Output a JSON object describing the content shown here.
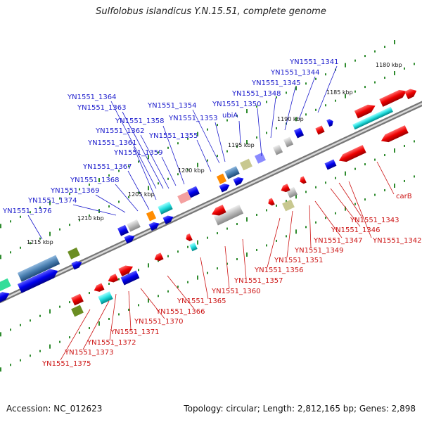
{
  "title": "Sulfolobus islandicus Y.N.15.51, complete genome",
  "footer": {
    "accession": "Accession: NC_012623",
    "summary": "Topology: circular; Length: 2,812,165 bp; Genes: 2,898"
  },
  "colors": {
    "label_top": "#1a1acc",
    "label_bottom": "#cc1111",
    "backbone": "#888888",
    "tick": "#2e8b2e"
  },
  "kbp_ticks": [
    "1180 kbp",
    "1185 kbp",
    "1190 kbp",
    "1195 kbp",
    "1200 kbp",
    "1205 kbp",
    "1210 kbp",
    "1215 kbp"
  ],
  "top_labels": [
    "YN1551_1341",
    "YN1551_1344",
    "YN1551_1345",
    "YN1551_1348",
    "YN1551_1350",
    "ubiA",
    "YN1551_1354",
    "YN1551_1353",
    "YN1551_1364",
    "YN1551_1363",
    "YN1551_1358",
    "YN1551_1362",
    "YN1551_1355",
    "YN1551_1361",
    "YN1551_1359",
    "YN1551_1367",
    "YN1551_1368",
    "YN1551_1369",
    "YN1551_1374",
    "YN1551_1376"
  ],
  "bottom_labels": [
    "carB",
    "YN1551_1343",
    "YN1551_1346",
    "YN1551_1342",
    "YN1551_1347",
    "YN1551_1349",
    "YN1551_1351",
    "YN1551_1356",
    "YN1551_1357",
    "YN1551_1360",
    "YN1551_1365",
    "YN1551_1366",
    "YN1551_1370",
    "YN1551_1371",
    "YN1551_1372",
    "YN1551_1373",
    "YN1551_1375"
  ]
}
